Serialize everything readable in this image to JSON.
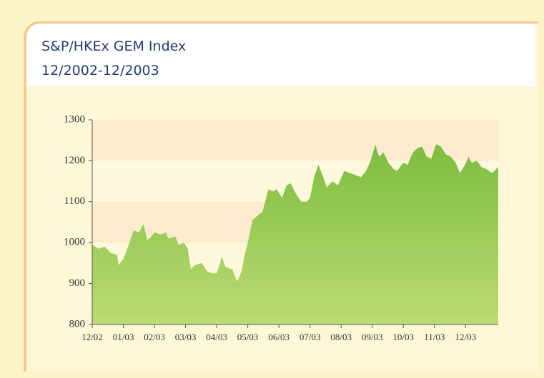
{
  "chart_data": {
    "type": "area",
    "title": "S&P/HKEx GEM Index",
    "subtitle": "12/2002-12/2003",
    "color": "#86c24a",
    "x": [
      0,
      0.2,
      0.4,
      0.6,
      0.8,
      0.85,
      1.0,
      1.2,
      1.33,
      1.5,
      1.65,
      1.77,
      1.9,
      2.0,
      2.2,
      2.37,
      2.45,
      2.67,
      2.78,
      2.95,
      3.07,
      3.17,
      3.3,
      3.52,
      3.7,
      3.85,
      4.0,
      4.17,
      4.28,
      4.5,
      4.66,
      4.8,
      4.9,
      5.0,
      5.15,
      5.3,
      5.47,
      5.66,
      5.82,
      5.93,
      6.1,
      6.25,
      6.38,
      6.54,
      6.72,
      6.9,
      7.0,
      7.13,
      7.27,
      7.4,
      7.54,
      7.72,
      7.9,
      8.1,
      8.28,
      8.46,
      8.64,
      8.8,
      8.95,
      9.1,
      9.22,
      9.36,
      9.52,
      9.68,
      9.8,
      10.0,
      10.14,
      10.3,
      10.44,
      10.6,
      10.75,
      10.9,
      11.05,
      11.2,
      11.37,
      11.53,
      11.68,
      11.82,
      11.98,
      12.1,
      12.2,
      12.36,
      12.5,
      12.66,
      12.85,
      13.05
    ],
    "values": [
      995,
      985,
      990,
      975,
      970,
      945,
      960,
      1000,
      1030,
      1025,
      1045,
      1005,
      1015,
      1025,
      1020,
      1025,
      1010,
      1015,
      995,
      1000,
      985,
      935,
      945,
      950,
      930,
      925,
      925,
      965,
      940,
      935,
      905,
      930,
      970,
      1000,
      1055,
      1065,
      1075,
      1130,
      1125,
      1130,
      1110,
      1140,
      1145,
      1120,
      1100,
      1100,
      1110,
      1160,
      1190,
      1165,
      1135,
      1150,
      1140,
      1175,
      1170,
      1165,
      1160,
      1175,
      1200,
      1240,
      1210,
      1220,
      1195,
      1180,
      1175,
      1195,
      1190,
      1220,
      1230,
      1235,
      1210,
      1205,
      1240,
      1235,
      1215,
      1210,
      1195,
      1170,
      1190,
      1210,
      1195,
      1200,
      1185,
      1180,
      1170,
      1185
    ],
    "xlim": [
      0,
      13.05
    ],
    "xticks": [
      {
        "value": 0,
        "label": "12/02"
      },
      {
        "value": 1,
        "label": "01/03"
      },
      {
        "value": 2,
        "label": "02/03"
      },
      {
        "value": 3,
        "label": "03/03"
      },
      {
        "value": 4,
        "label": "04/03"
      },
      {
        "value": 5,
        "label": "05/03"
      },
      {
        "value": 6,
        "label": "06/03"
      },
      {
        "value": 7,
        "label": "07/03"
      },
      {
        "value": 8,
        "label": "08/03"
      },
      {
        "value": 9,
        "label": "09/03"
      },
      {
        "value": 10,
        "label": "10/03"
      },
      {
        "value": 11,
        "label": "11/03"
      },
      {
        "value": 12,
        "label": "12/03"
      }
    ],
    "ylim": [
      800,
      1300
    ],
    "yticks": [
      800,
      900,
      1000,
      1100,
      1200,
      1300
    ],
    "grid": true
  }
}
